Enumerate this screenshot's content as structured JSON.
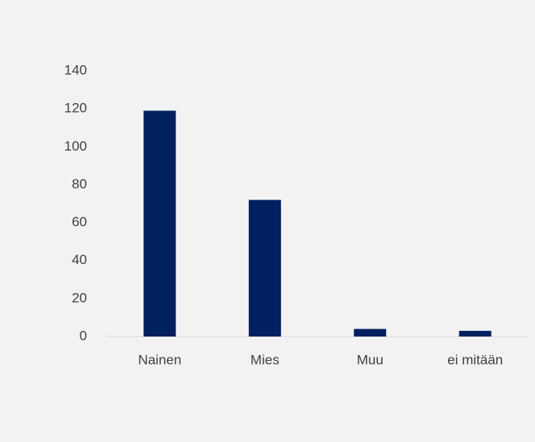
{
  "chart_data": {
    "type": "bar",
    "categories": [
      "Nainen",
      "Mies",
      "Muu",
      "ei mitään"
    ],
    "values": [
      119,
      72,
      4,
      3
    ],
    "color": "#002060",
    "ylim": [
      0,
      140
    ],
    "yticks": [
      0,
      20,
      40,
      60,
      80,
      100,
      120,
      140
    ],
    "grid": false
  }
}
